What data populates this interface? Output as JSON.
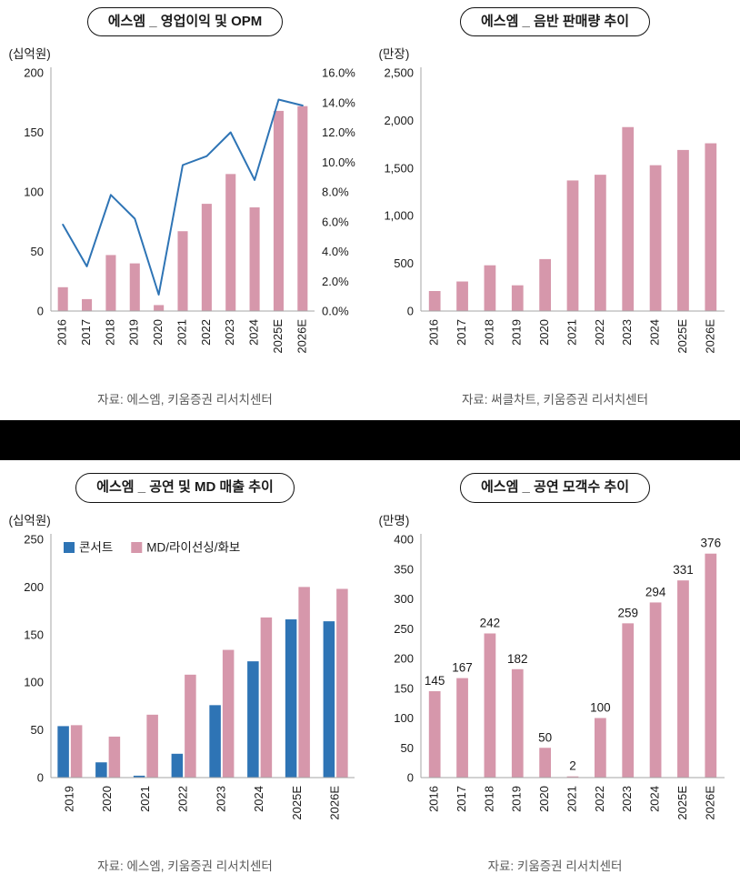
{
  "colors": {
    "bar_pink": "#d697ab",
    "bar_blue": "#2e74b5",
    "line_blue": "#2e74b5",
    "axis_line": "#a6a6a6",
    "tick_text": "#1a1a1a",
    "source_text": "#595959",
    "divider_band": "#000000"
  },
  "chart_data": [
    {
      "type": "bar+line",
      "title": "에스엠 _ 영업이익 및 OPM",
      "unit": "(십억원)",
      "source": "자료: 에스엠, 키움증권 리서치센터",
      "categories": [
        "2016",
        "2017",
        "2018",
        "2019",
        "2020",
        "2021",
        "2022",
        "2023",
        "2024",
        "2025E",
        "2026E"
      ],
      "series": [
        {
          "name": "영업이익",
          "type": "bar",
          "axis": "left",
          "color": "#d697ab",
          "values": [
            20,
            10,
            47,
            40,
            5,
            67,
            90,
            115,
            87,
            168,
            172
          ]
        },
        {
          "name": "OPM",
          "type": "line",
          "axis": "right",
          "color": "#2e74b5",
          "values": [
            5.8,
            3.0,
            7.8,
            6.2,
            1.1,
            9.8,
            10.4,
            12.0,
            8.8,
            14.2,
            13.8
          ]
        }
      ],
      "y_left": {
        "lim": [
          0,
          200
        ],
        "ticks": [
          0,
          50,
          100,
          150,
          200
        ],
        "labels": [
          "0",
          "50",
          "100",
          "150",
          "200"
        ]
      },
      "y_right": {
        "lim": [
          0,
          16
        ],
        "ticks": [
          0,
          2,
          4,
          6,
          8,
          10,
          12,
          14,
          16
        ],
        "labels": [
          "0.0%",
          "2.0%",
          "4.0%",
          "6.0%",
          "8.0%",
          "10.0%",
          "12.0%",
          "14.0%",
          "16.0%"
        ]
      },
      "grid": false,
      "legend_position": "none"
    },
    {
      "type": "bar",
      "title": "에스엠 _ 음반 판매량 추이",
      "unit": "(만장)",
      "source": "자료: 써클차트, 키움증권 리서치센터",
      "categories": [
        "2016",
        "2017",
        "2018",
        "2019",
        "2020",
        "2021",
        "2022",
        "2023",
        "2024",
        "2025E",
        "2026E"
      ],
      "series": [
        {
          "name": "음반 판매량",
          "type": "bar",
          "axis": "left",
          "color": "#d697ab",
          "values": [
            210,
            310,
            480,
            270,
            545,
            1370,
            1430,
            1930,
            1530,
            1690,
            1760
          ]
        }
      ],
      "y_left": {
        "lim": [
          0,
          2500
        ],
        "ticks": [
          0,
          500,
          1000,
          1500,
          2000,
          2500
        ],
        "labels": [
          "0",
          "500",
          "1,000",
          "1,500",
          "2,000",
          "2,500"
        ]
      },
      "grid": false,
      "legend_position": "none"
    },
    {
      "type": "grouped-bar",
      "title": "에스엠 _ 공연 및 MD 매출 추이",
      "unit": "(십억원)",
      "source": "자료: 에스엠, 키움증권 리서치센터",
      "categories": [
        "2019",
        "2020",
        "2021",
        "2022",
        "2023",
        "2024",
        "2025E",
        "2026E"
      ],
      "legend": [
        {
          "label": "콘서트",
          "color": "#2e74b5"
        },
        {
          "label": "MD/라이선싱/화보",
          "color": "#d697ab"
        }
      ],
      "series": [
        {
          "name": "콘서트",
          "type": "bar",
          "axis": "left",
          "color": "#2e74b5",
          "values": [
            54,
            16,
            2,
            25,
            76,
            122,
            166,
            164
          ]
        },
        {
          "name": "MD/라이선싱/화보",
          "type": "bar",
          "axis": "left",
          "color": "#d697ab",
          "values": [
            55,
            43,
            66,
            108,
            134,
            168,
            200,
            198
          ]
        }
      ],
      "y_left": {
        "lim": [
          0,
          250
        ],
        "ticks": [
          0,
          50,
          100,
          150,
          200,
          250
        ],
        "labels": [
          "0",
          "50",
          "100",
          "150",
          "200",
          "250"
        ]
      },
      "grid": false,
      "legend_position": "top-left"
    },
    {
      "type": "bar",
      "title": "에스엠 _ 공연 모객수 추이",
      "unit": "(만명)",
      "source": "자료: 키움증권 리서치센터",
      "categories": [
        "2016",
        "2017",
        "2018",
        "2019",
        "2020",
        "2021",
        "2022",
        "2023",
        "2024",
        "2025E",
        "2026E"
      ],
      "series": [
        {
          "name": "공연 모객수",
          "type": "bar",
          "axis": "left",
          "color": "#d697ab",
          "show_labels": true,
          "values": [
            145,
            167,
            242,
            182,
            50,
            2,
            100,
            259,
            294,
            331,
            376
          ]
        }
      ],
      "y_left": {
        "lim": [
          0,
          400
        ],
        "ticks": [
          0,
          50,
          100,
          150,
          200,
          250,
          300,
          350,
          400
        ],
        "labels": [
          "0",
          "50",
          "100",
          "150",
          "200",
          "250",
          "300",
          "350",
          "400"
        ]
      },
      "grid": false,
      "legend_position": "none"
    }
  ]
}
